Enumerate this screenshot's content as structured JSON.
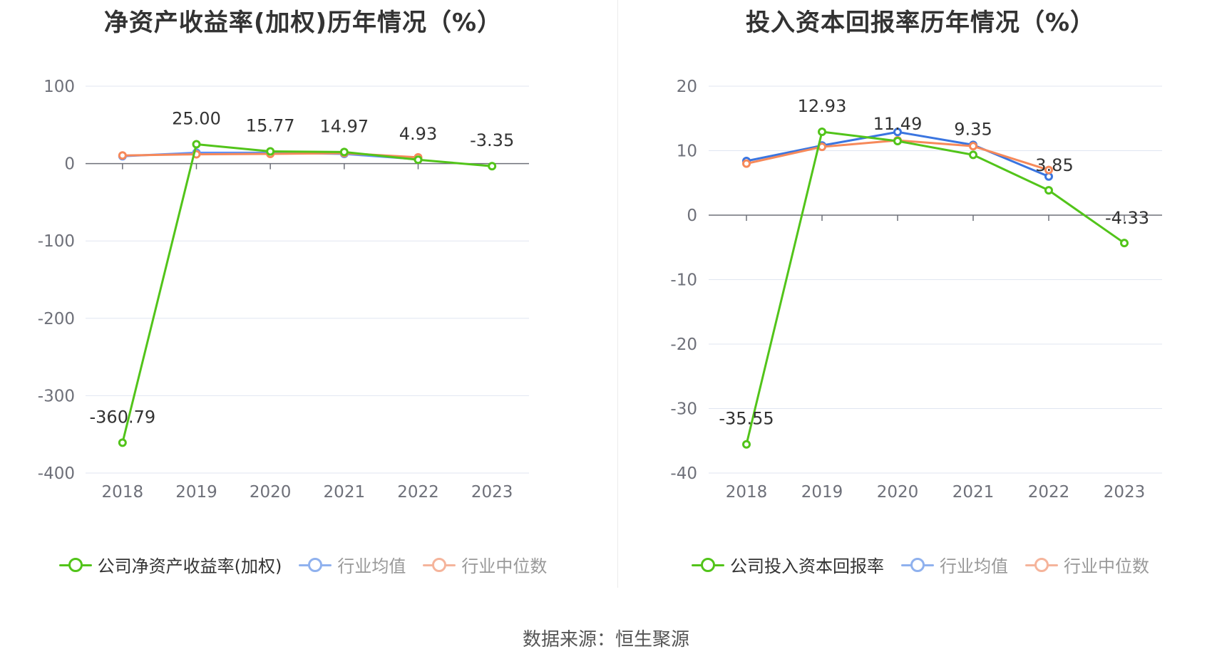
{
  "source": "数据来源：恒生聚源",
  "colors": {
    "company": "#52c41a",
    "avg": "#5b8ff9",
    "avg_legend": "#8fb1ee",
    "median": "#f6895a",
    "median_legend": "#f5b49b"
  },
  "chart_data": [
    {
      "type": "line",
      "title": "净资产收益率(加权)历年情况（%）",
      "categories": [
        "2018",
        "2019",
        "2020",
        "2021",
        "2022",
        "2023"
      ],
      "ylim": [
        -400,
        100
      ],
      "yticks": [
        "100",
        "0",
        "-100",
        "-200",
        "-300",
        "-400"
      ],
      "ytick_values": [
        100,
        0,
        -100,
        -200,
        -300,
        -400
      ],
      "grid": true,
      "legend_position": "bottom",
      "series": [
        {
          "name": "公司净资产收益率(加权)",
          "color": "#52c41a",
          "values": [
            -360.79,
            25.0,
            15.77,
            14.97,
            4.93,
            -3.35
          ],
          "labels": [
            "-360.79",
            "25.00",
            "15.77",
            "14.97",
            "4.93",
            "-3.35"
          ]
        },
        {
          "name": "行业均值",
          "color": "#5b8ff9",
          "values": [
            9.5,
            14.0,
            14.0,
            12.5,
            5.5,
            null
          ]
        },
        {
          "name": "行业中位数",
          "color": "#f6895a",
          "values": [
            10.5,
            12.0,
            12.5,
            13.5,
            8.0,
            null
          ]
        }
      ]
    },
    {
      "type": "line",
      "title": "投入资本回报率历年情况（%）",
      "categories": [
        "2018",
        "2019",
        "2020",
        "2021",
        "2022",
        "2023"
      ],
      "ylim": [
        -40,
        20
      ],
      "yticks": [
        "20",
        "10",
        "0",
        "-10",
        "-20",
        "-30",
        "-40"
      ],
      "ytick_values": [
        20,
        10,
        0,
        -10,
        -20,
        -30,
        -40
      ],
      "grid": true,
      "legend_position": "bottom",
      "series": [
        {
          "name": "公司投入资本回报率",
          "color": "#52c41a",
          "values": [
            -35.55,
            12.93,
            11.49,
            9.35,
            3.85,
            -4.33
          ],
          "labels": [
            "-35.55",
            "12.93",
            "11.49",
            "9.35",
            "3.85",
            "-4.33"
          ]
        },
        {
          "name": "行业均值",
          "color": "#3a75e0",
          "values": [
            8.4,
            10.8,
            12.9,
            10.9,
            6.0,
            null
          ]
        },
        {
          "name": "行业中位数",
          "color": "#f6895a",
          "values": [
            8.0,
            10.6,
            11.6,
            10.7,
            7.0,
            null
          ]
        }
      ]
    }
  ]
}
